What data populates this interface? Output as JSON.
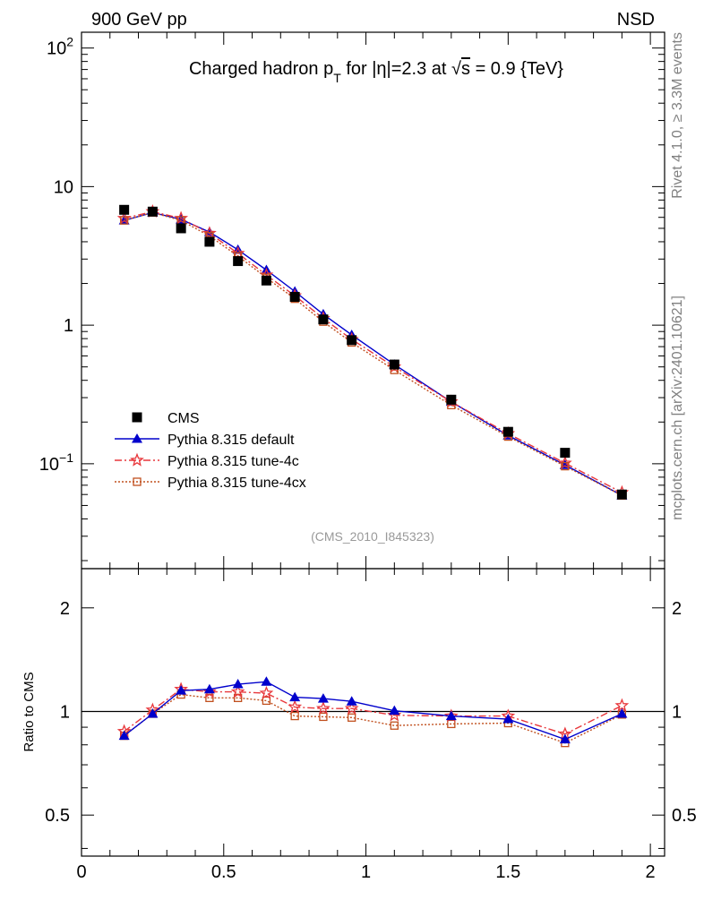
{
  "header": {
    "left": "900 GeV pp",
    "right": "NSD"
  },
  "side_labels": {
    "rivet": "Rivet 4.1.0, ≥ 3.3M events",
    "mcplots": "mcplots.cern.ch [arXiv:2401.10621]"
  },
  "chart_data": [
    {
      "type": "scatter",
      "panel": "main",
      "title_parts": {
        "a": "Charged hadron p",
        "sub": "T",
        "b": " for |η|=2.3 at ",
        "sqrt": "√",
        "c": "s",
        "d": " = 0.9 {TeV}"
      },
      "watermark": "(CMS_2010_I845323)",
      "yscale": "log",
      "ylim": [
        0.0175,
        130
      ],
      "xlim": [
        0,
        2.05
      ],
      "yticks": [
        {
          "value": 100,
          "base": "10",
          "exp": "2"
        },
        {
          "value": 10,
          "base": "10",
          "exp": ""
        },
        {
          "value": 1,
          "base": "1",
          "exp": ""
        },
        {
          "value": 0.1,
          "base": "10",
          "exp": "−1"
        }
      ],
      "x": [
        0.15,
        0.25,
        0.35,
        0.45,
        0.55,
        0.65,
        0.75,
        0.85,
        0.95,
        1.1,
        1.3,
        1.5,
        1.7,
        1.9
      ],
      "series": [
        {
          "name": "CMS",
          "style": "data",
          "color": "#000000",
          "values": [
            6.8,
            6.6,
            5.0,
            4.0,
            2.9,
            2.1,
            1.6,
            1.1,
            0.78,
            0.52,
            0.29,
            0.17,
            0.12,
            0.06
          ]
        },
        {
          "name": "Pythia 8.315 default",
          "style": "triangle-solid",
          "color": "#0000cc",
          "values": [
            5.7,
            6.5,
            5.8,
            4.7,
            3.5,
            2.5,
            1.75,
            1.2,
            0.85,
            0.52,
            0.28,
            0.16,
            0.098,
            0.059
          ]
        },
        {
          "name": "Pythia 8.315 tune-4c",
          "style": "star-dashdot",
          "color": "#e8373b",
          "values": [
            5.9,
            6.6,
            5.9,
            4.6,
            3.3,
            2.3,
            1.63,
            1.12,
            0.79,
            0.5,
            0.28,
            0.165,
            0.101,
            0.062
          ]
        },
        {
          "name": "Pythia 8.315 tune-4cx",
          "style": "square-dotted",
          "color": "#c1501f",
          "values": [
            5.7,
            6.5,
            5.7,
            4.4,
            3.15,
            2.2,
            1.55,
            1.06,
            0.75,
            0.475,
            0.265,
            0.157,
            0.096,
            0.059
          ]
        }
      ]
    },
    {
      "type": "line",
      "panel": "ratio",
      "ylabel": "Ratio to CMS",
      "yscale": "log",
      "ylim": [
        0.38,
        2.6
      ],
      "xlim": [
        0,
        2.05
      ],
      "reference": 1,
      "yticks": [
        {
          "value": 2,
          "label": "2"
        },
        {
          "value": 1,
          "label": "1"
        },
        {
          "value": 0.5,
          "label": "0.5"
        }
      ],
      "xticks": [
        {
          "value": 0,
          "label": "0"
        },
        {
          "value": 0.5,
          "label": "0.5"
        },
        {
          "value": 1,
          "label": "1"
        },
        {
          "value": 1.5,
          "label": "1.5"
        },
        {
          "value": 2,
          "label": "2"
        }
      ],
      "x": [
        0.15,
        0.25,
        0.35,
        0.45,
        0.55,
        0.65,
        0.75,
        0.85,
        0.95,
        1.1,
        1.3,
        1.5,
        1.7,
        1.9
      ],
      "series": [
        {
          "name": "Pythia 8.315 default",
          "style": "triangle-solid",
          "color": "#0000cc",
          "values": [
            0.85,
            0.985,
            1.15,
            1.16,
            1.2,
            1.22,
            1.1,
            1.09,
            1.07,
            1.005,
            0.97,
            0.95,
            0.83,
            0.985
          ]
        },
        {
          "name": "Pythia 8.315 tune-4c",
          "style": "star-dashdot",
          "color": "#e8373b",
          "values": [
            0.875,
            1.01,
            1.16,
            1.14,
            1.14,
            1.13,
            1.03,
            1.02,
            1.02,
            0.975,
            0.97,
            0.97,
            0.86,
            1.04
          ]
        },
        {
          "name": "Pythia 8.315 tune-4cx",
          "style": "square-dotted",
          "color": "#c1501f",
          "values": [
            0.85,
            0.985,
            1.12,
            1.095,
            1.095,
            1.075,
            0.97,
            0.965,
            0.96,
            0.91,
            0.92,
            0.925,
            0.81,
            0.98
          ]
        }
      ]
    }
  ]
}
